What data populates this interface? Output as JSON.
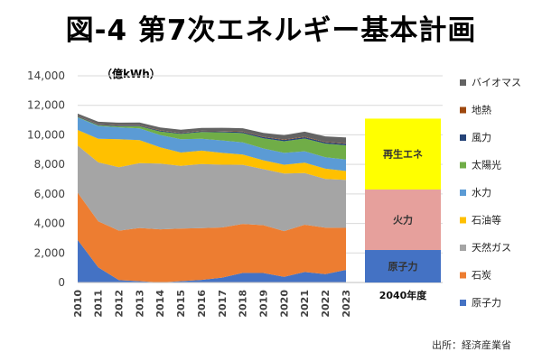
{
  "title": "図-4 第7次エネルギー基本計画",
  "unit_label": "（億kWh）",
  "source": "出所：経済産業省",
  "chart_data": [
    {
      "type": "area",
      "stacked": true,
      "x": [
        "2010",
        "2011",
        "2012",
        "2013",
        "2014",
        "2015",
        "2016",
        "2017",
        "2018",
        "2019",
        "2020",
        "2021",
        "2022",
        "2023"
      ],
      "ylim": [
        0,
        14000
      ],
      "yticks": [
        0,
        2000,
        4000,
        6000,
        8000,
        10000,
        12000,
        14000
      ],
      "ytick_labels": [
        "0",
        "2,000",
        "4,000",
        "6,000",
        "8,000",
        "10,000",
        "12,000",
        "14,000"
      ],
      "series": [
        {
          "name": "原子力",
          "color": "#4472C4",
          "values": [
            2880,
            1020,
            160,
            90,
            0,
            94,
            180,
            330,
            650,
            640,
            380,
            710,
            560,
            850
          ]
        },
        {
          "name": "石炭",
          "color": "#ED7D31",
          "values": [
            3200,
            3120,
            3350,
            3600,
            3600,
            3560,
            3500,
            3400,
            3320,
            3240,
            3100,
            3200,
            3150,
            2850
          ]
        },
        {
          "name": "天然ガス",
          "color": "#A5A5A5",
          "values": [
            3200,
            4000,
            4300,
            4400,
            4450,
            4250,
            4350,
            4250,
            4000,
            3800,
            3900,
            3500,
            3300,
            3250
          ]
        },
        {
          "name": "石油等",
          "color": "#FFC000",
          "values": [
            1050,
            1600,
            1900,
            1550,
            1100,
            900,
            900,
            800,
            700,
            600,
            600,
            700,
            700,
            600
          ]
        },
        {
          "name": "水力",
          "color": "#5B9BD5",
          "values": [
            850,
            860,
            800,
            800,
            840,
            900,
            800,
            840,
            820,
            800,
            800,
            780,
            770,
            780
          ]
        },
        {
          "name": "太陽光",
          "color": "#70AD47",
          "values": [
            40,
            50,
            70,
            140,
            240,
            360,
            460,
            550,
            630,
            690,
            790,
            860,
            930,
            960
          ]
        },
        {
          "name": "風力",
          "color": "#264478",
          "values": [
            40,
            50,
            50,
            50,
            50,
            55,
            60,
            65,
            75,
            77,
            90,
            94,
            90,
            105
          ]
        },
        {
          "name": "地熱",
          "color": "#9E480E",
          "values": [
            26,
            26,
            26,
            26,
            26,
            26,
            25,
            25,
            25,
            28,
            30,
            30,
            30,
            30
          ]
        },
        {
          "name": "バイオマス",
          "color": "#636363",
          "values": [
            150,
            160,
            170,
            180,
            200,
            200,
            200,
            220,
            230,
            260,
            290,
            340,
            370,
            400
          ]
        }
      ]
    },
    {
      "type": "bar",
      "stacked": true,
      "category": "2040年度",
      "segments": [
        {
          "name": "原子力",
          "color": "#4472C4",
          "value": 2200
        },
        {
          "name": "火力",
          "color": "#E6A09C",
          "value": 4100
        },
        {
          "name": "再生エネ",
          "color": "#FFFF00",
          "value": 4800
        }
      ]
    }
  ],
  "legend": [
    {
      "label": "バイオマス",
      "color": "#636363"
    },
    {
      "label": "地熱",
      "color": "#9E480E"
    },
    {
      "label": "風力",
      "color": "#264478"
    },
    {
      "label": "太陽光",
      "color": "#70AD47"
    },
    {
      "label": "水力",
      "color": "#5B9BD5"
    },
    {
      "label": "石油等",
      "color": "#FFC000"
    },
    {
      "label": "天然ガス",
      "color": "#A5A5A5"
    },
    {
      "label": "石炭",
      "color": "#ED7D31"
    },
    {
      "label": "原子力",
      "color": "#4472C4"
    }
  ]
}
